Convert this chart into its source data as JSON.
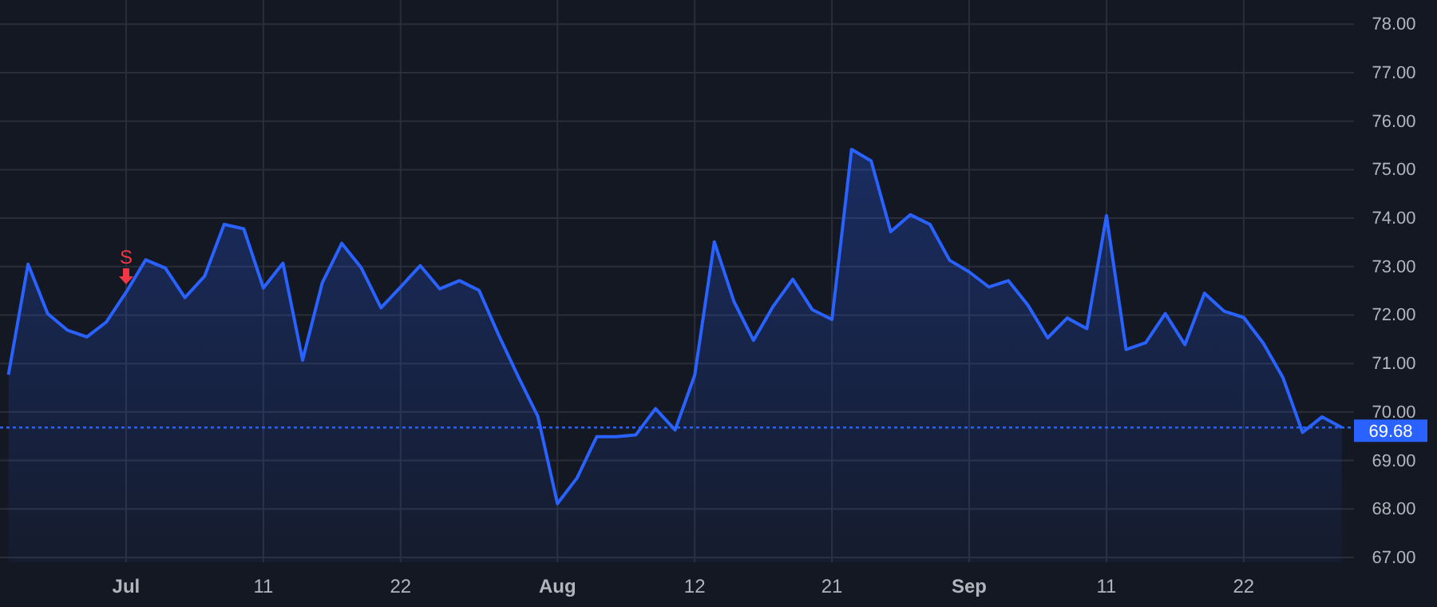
{
  "chart_data": {
    "type": "area",
    "categories": [
      null,
      null,
      null,
      null,
      null,
      null,
      "Jul",
      null,
      null,
      null,
      null,
      null,
      null,
      "11",
      null,
      null,
      null,
      null,
      null,
      null,
      "22",
      null,
      null,
      null,
      null,
      null,
      null,
      null,
      "Aug",
      null,
      null,
      null,
      null,
      null,
      null,
      "12",
      null,
      null,
      null,
      null,
      null,
      null,
      "21",
      null,
      null,
      null,
      null,
      null,
      null,
      "Sep",
      null,
      null,
      null,
      null,
      null,
      null,
      "11",
      null,
      null,
      null,
      null,
      null,
      null,
      "22",
      null,
      null,
      null,
      null,
      null
    ],
    "series": [
      {
        "color": "#2962ff",
        "values": [
          70.77,
          73.05,
          72.03,
          71.69,
          71.55,
          71.86,
          72.47,
          73.14,
          72.97,
          72.36,
          72.8,
          73.87,
          73.78,
          72.56,
          73.07,
          71.07,
          72.66,
          73.48,
          72.97,
          72.15,
          72.58,
          73.02,
          72.54,
          72.71,
          72.51,
          71.59,
          70.73,
          69.91,
          68.11,
          68.64,
          69.49,
          69.49,
          69.53,
          70.07,
          69.63,
          70.76,
          73.51,
          72.28,
          71.48,
          72.18,
          72.74,
          72.11,
          71.91,
          75.42,
          75.18,
          73.72,
          74.07,
          73.87,
          73.13,
          72.89,
          72.58,
          72.71,
          72.2,
          71.53,
          71.94,
          71.72,
          74.05,
          71.29,
          71.43,
          72.03,
          71.39,
          72.45,
          72.08,
          71.95,
          71.42,
          70.71,
          69.58,
          69.9,
          69.68
        ]
      }
    ],
    "ylim": [
      66.9,
      78.5
    ],
    "yticks": [
      {
        "value": 67,
        "label": "67.00"
      },
      {
        "value": 68,
        "label": "68.00"
      },
      {
        "value": 69,
        "label": "69.00"
      },
      {
        "value": 70,
        "label": "70.00"
      },
      {
        "value": 71,
        "label": "71.00"
      },
      {
        "value": 72,
        "label": "72.00"
      },
      {
        "value": 73,
        "label": "73.00"
      },
      {
        "value": 74,
        "label": "74.00"
      },
      {
        "value": 75,
        "label": "75.00"
      },
      {
        "value": 76,
        "label": "76.00"
      },
      {
        "value": 77,
        "label": "77.00"
      },
      {
        "value": 78,
        "label": "78.00"
      }
    ],
    "grid": true,
    "ref_lines": [
      {
        "axis": "y",
        "value": 69.68,
        "label": "69.68",
        "color": "#2962ff",
        "line_style": "dotted"
      }
    ],
    "annotations": [
      {
        "text": "S",
        "x": "Jul",
        "y": 72.47
      }
    ]
  }
}
